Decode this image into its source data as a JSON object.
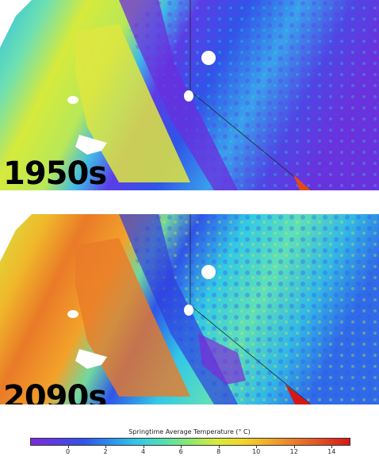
{
  "panels": [
    {
      "label": "1950s"
    },
    {
      "label": "2090s"
    }
  ],
  "colorbar": {
    "title": "Springtime Average Temperature (° C)",
    "ticks": [
      "0",
      "2",
      "4",
      "6",
      "8",
      "10",
      "12",
      "14"
    ],
    "min": -2,
    "max": 15,
    "colors": [
      "#7a2bd9",
      "#5a3de6",
      "#2f55e8",
      "#2b8ff0",
      "#32c8e6",
      "#4fe0b0",
      "#8ee86a",
      "#d8ec3a",
      "#f2d52a",
      "#f0a82a",
      "#ea7a28",
      "#e04a22",
      "#d41818"
    ]
  }
}
